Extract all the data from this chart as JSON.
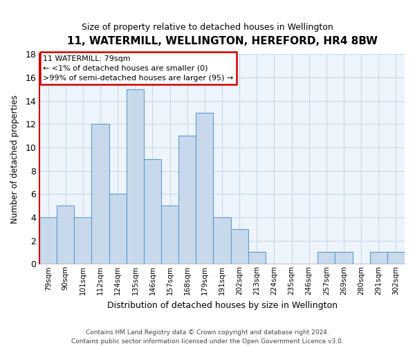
{
  "title": "11, WATERMILL, WELLINGTON, HEREFORD, HR4 8BW",
  "subtitle": "Size of property relative to detached houses in Wellington",
  "xlabel": "Distribution of detached houses by size in Wellington",
  "ylabel": "Number of detached properties",
  "bar_labels": [
    "79sqm",
    "90sqm",
    "101sqm",
    "112sqm",
    "124sqm",
    "135sqm",
    "146sqm",
    "157sqm",
    "168sqm",
    "179sqm",
    "191sqm",
    "202sqm",
    "213sqm",
    "224sqm",
    "235sqm",
    "246sqm",
    "257sqm",
    "269sqm",
    "280sqm",
    "291sqm",
    "302sqm"
  ],
  "bar_values": [
    4,
    5,
    4,
    12,
    6,
    15,
    9,
    5,
    11,
    13,
    4,
    3,
    1,
    0,
    0,
    0,
    1,
    1,
    0,
    1,
    1
  ],
  "bar_color": "#c9d9ec",
  "bar_edge_color": "#5b9bd5",
  "ylim": [
    0,
    18
  ],
  "yticks": [
    0,
    2,
    4,
    6,
    8,
    10,
    12,
    14,
    16,
    18
  ],
  "annotation_line1": "11 WATERMILL: 79sqm",
  "annotation_line2": "← <1% of detached houses are smaller (0)",
  "annotation_line3": ">99% of semi-detached houses are larger (95) →",
  "annotation_box_color": "#ffffff",
  "annotation_box_edge_color": "#cc0000",
  "footer_line1": "Contains HM Land Registry data © Crown copyright and database right 2024.",
  "footer_line2": "Contains public sector information licensed under the Open Government Licence v3.0.",
  "property_bar_index": 0,
  "left_spine_color": "#cc0000",
  "grid_color": "#c8d8e8",
  "background_color": "#eef4fb"
}
